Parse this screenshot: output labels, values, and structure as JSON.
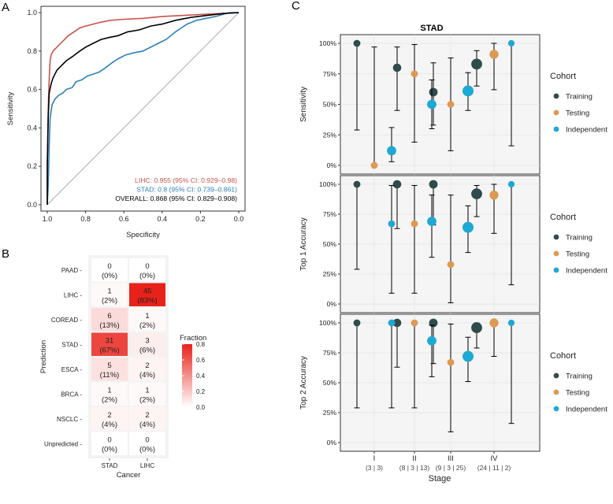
{
  "panel_labels": [
    "A",
    "B",
    "C"
  ],
  "colors": {
    "lihc": "#c9534a",
    "stad": "#2d7fb8",
    "overall": "#000000",
    "training": "#2f4b4b",
    "testing": "#dd9a52",
    "independent": "#1ea8d4",
    "panel_bg": "#f5f5f5",
    "grid": "#e3e3e3",
    "cell_line": "#ffffff",
    "heat_low": "#ffffff",
    "heat_high": "#e8221a"
  },
  "chart_data": [
    {
      "id": "A",
      "type": "line",
      "title": "",
      "xlabel": "Specificity",
      "ylabel": "Sensitivity",
      "xlim": [
        1.0,
        0.0
      ],
      "ylim": [
        0.0,
        1.0
      ],
      "x_ticks": [
        "1.0",
        "0.8",
        "0.6",
        "0.4",
        "0.2",
        "0.0"
      ],
      "y_ticks": [
        "0.0",
        "0.2",
        "0.4",
        "0.6",
        "0.8",
        "1.0"
      ],
      "series": [
        {
          "name": "LIHC",
          "color": "#c9534a",
          "label": "LIHC: 0.955 (95% CI: 0.929–0.98)",
          "points": [
            [
              1.0,
              0.0
            ],
            [
              1.0,
              0.2
            ],
            [
              0.995,
              0.5
            ],
            [
              0.99,
              0.65
            ],
            [
              0.985,
              0.75
            ],
            [
              0.98,
              0.78
            ],
            [
              0.97,
              0.8
            ],
            [
              0.96,
              0.81
            ],
            [
              0.95,
              0.82
            ],
            [
              0.93,
              0.84
            ],
            [
              0.91,
              0.86
            ],
            [
              0.89,
              0.88
            ],
            [
              0.86,
              0.9
            ],
            [
              0.83,
              0.92
            ],
            [
              0.8,
              0.93
            ],
            [
              0.76,
              0.94
            ],
            [
              0.72,
              0.95
            ],
            [
              0.67,
              0.96
            ],
            [
              0.6,
              0.965
            ],
            [
              0.5,
              0.97
            ],
            [
              0.4,
              0.98
            ],
            [
              0.3,
              0.985
            ],
            [
              0.2,
              0.99
            ],
            [
              0.1,
              0.995
            ],
            [
              0.0,
              1.0
            ]
          ]
        },
        {
          "name": "STAD",
          "color": "#2d7fb8",
          "label": "STAD: 0.8 (95% CI: 0.739–0.861)",
          "points": [
            [
              1.0,
              0.0
            ],
            [
              0.995,
              0.1
            ],
            [
              0.99,
              0.3
            ],
            [
              0.985,
              0.45
            ],
            [
              0.975,
              0.52
            ],
            [
              0.96,
              0.55
            ],
            [
              0.94,
              0.57
            ],
            [
              0.92,
              0.58
            ],
            [
              0.9,
              0.6
            ],
            [
              0.87,
              0.61
            ],
            [
              0.85,
              0.64
            ],
            [
              0.82,
              0.65
            ],
            [
              0.79,
              0.67
            ],
            [
              0.76,
              0.68
            ],
            [
              0.73,
              0.69
            ],
            [
              0.7,
              0.71
            ],
            [
              0.66,
              0.74
            ],
            [
              0.63,
              0.76
            ],
            [
              0.59,
              0.78
            ],
            [
              0.55,
              0.79
            ],
            [
              0.5,
              0.8
            ],
            [
              0.46,
              0.82
            ],
            [
              0.42,
              0.84
            ],
            [
              0.38,
              0.86
            ],
            [
              0.33,
              0.9
            ],
            [
              0.3,
              0.92
            ],
            [
              0.27,
              0.94
            ],
            [
              0.22,
              0.96
            ],
            [
              0.17,
              0.97
            ],
            [
              0.12,
              0.98
            ],
            [
              0.05,
              1.0
            ],
            [
              0.0,
              1.0
            ]
          ]
        },
        {
          "name": "OVERALL",
          "color": "#000000",
          "label": "OVERALL: 0.868 (95% CI: 0.829–0.908)",
          "points": [
            [
              1.0,
              0.0
            ],
            [
              1.0,
              0.2
            ],
            [
              0.995,
              0.45
            ],
            [
              0.99,
              0.58
            ],
            [
              0.98,
              0.63
            ],
            [
              0.97,
              0.66
            ],
            [
              0.95,
              0.7
            ],
            [
              0.93,
              0.72
            ],
            [
              0.9,
              0.75
            ],
            [
              0.87,
              0.77
            ],
            [
              0.83,
              0.8
            ],
            [
              0.8,
              0.82
            ],
            [
              0.76,
              0.84
            ],
            [
              0.72,
              0.86
            ],
            [
              0.68,
              0.87
            ],
            [
              0.63,
              0.88
            ],
            [
              0.58,
              0.9
            ],
            [
              0.52,
              0.91
            ],
            [
              0.46,
              0.93
            ],
            [
              0.4,
              0.94
            ],
            [
              0.33,
              0.96
            ],
            [
              0.25,
              0.975
            ],
            [
              0.17,
              0.985
            ],
            [
              0.08,
              0.995
            ],
            [
              0.0,
              1.0
            ]
          ]
        }
      ]
    },
    {
      "id": "B",
      "type": "heatmap",
      "xlabel": "Cancer",
      "ylabel": "Prediction",
      "columns": [
        "STAD",
        "LIHC"
      ],
      "rows": [
        "PAAD",
        "LIHC",
        "COREAD",
        "STAD",
        "ESCA",
        "BRCA",
        "NSCLC",
        "Unpredicted"
      ],
      "counts": [
        [
          0,
          0
        ],
        [
          1,
          45
        ],
        [
          6,
          1
        ],
        [
          31,
          3
        ],
        [
          5,
          2
        ],
        [
          1,
          1
        ],
        [
          2,
          2
        ],
        [
          0,
          0
        ]
      ],
      "percent_labels": [
        [
          "(0%)",
          "(0%)"
        ],
        [
          "(2%)",
          "(83%)"
        ],
        [
          "(13%)",
          "(2%)"
        ],
        [
          "(67%)",
          "(6%)"
        ],
        [
          "(11%)",
          "(4%)"
        ],
        [
          "(2%)",
          "(2%)"
        ],
        [
          "(4%)",
          "(4%)"
        ],
        [
          "(0%)",
          "(0%)"
        ]
      ],
      "fraction": [
        [
          0,
          0
        ],
        [
          0.02,
          0.83
        ],
        [
          0.13,
          0.02
        ],
        [
          0.67,
          0.06
        ],
        [
          0.11,
          0.04
        ],
        [
          0.02,
          0.02
        ],
        [
          0.04,
          0.04
        ],
        [
          0,
          0
        ]
      ],
      "legend": {
        "title": "Fraction",
        "ticks": [
          "0.0",
          "0.2",
          "0.4",
          "0.6",
          "0.8"
        ],
        "range": [
          0,
          0.8
        ]
      }
    },
    {
      "id": "C",
      "type": "scatter",
      "title": "STAD",
      "xlabel": "Stage",
      "categories": [
        "I",
        "II",
        "III",
        "IV"
      ],
      "category_sublabels": [
        "(3 | 3)",
        "(8 | 3 | 13)",
        "(9 | 3 | 25)",
        "(24 | 11 | 2)"
      ],
      "y_ticks": [
        "0%",
        "25%",
        "50%",
        "75%",
        "100%"
      ],
      "ylim": [
        0,
        100
      ],
      "cohorts": [
        "Training",
        "Testing",
        "Independent"
      ],
      "legend_title": "Cohort",
      "facets": [
        {
          "ylabel": "Sensitivity",
          "points": {
            "Training": [
              {
                "value": 100,
                "low": 29,
                "high": 100,
                "size": 3
              },
              {
                "value": 80,
                "low": 45,
                "high": 97,
                "size": 8
              },
              {
                "value": 60,
                "low": 33,
                "high": 84,
                "size": 9
              },
              {
                "value": 83,
                "low": 65,
                "high": 94,
                "size": 24
              }
            ],
            "Testing": [
              {
                "value": 0,
                "low": 0,
                "high": 97,
                "size": 3
              },
              {
                "value": 75,
                "low": 19,
                "high": 99,
                "size": 3
              },
              {
                "value": 50,
                "low": 12,
                "high": 88,
                "size": 3
              },
              {
                "value": 91,
                "low": 62,
                "high": 100,
                "size": 11
              }
            ],
            "Independent": [
              {
                "value": 12,
                "low": 3,
                "high": 31,
                "size": 13
              },
              {
                "value": 50,
                "low": 30,
                "high": 70,
                "size": 13
              },
              {
                "value": 61,
                "low": 45,
                "high": 76,
                "size": 25
              },
              {
                "value": 100,
                "low": 16,
                "high": 100,
                "size": 2
              }
            ]
          }
        },
        {
          "ylabel": "Top 1 Accuracy",
          "points": {
            "Training": [
              {
                "value": 100,
                "low": 29,
                "high": 100,
                "size": 3
              },
              {
                "value": 100,
                "low": 63,
                "high": 100,
                "size": 8
              },
              {
                "value": 100,
                "low": 66,
                "high": 100,
                "size": 9
              },
              {
                "value": 92,
                "low": 73,
                "high": 99,
                "size": 24
              }
            ],
            "Testing": [
              null,
              {
                "value": 67,
                "low": 9,
                "high": 99,
                "size": 3
              },
              {
                "value": 33,
                "low": 1,
                "high": 91,
                "size": 3
              },
              {
                "value": 91,
                "low": 59,
                "high": 100,
                "size": 11
              }
            ],
            "Independent": [
              {
                "value": 67,
                "low": 9,
                "high": 99,
                "size": 3
              },
              {
                "value": 69,
                "low": 39,
                "high": 91,
                "size": 13
              },
              {
                "value": 64,
                "low": 43,
                "high": 82,
                "size": 25
              },
              {
                "value": 100,
                "low": 16,
                "high": 100,
                "size": 2
              }
            ]
          }
        },
        {
          "ylabel": "Top 2 Accuracy",
          "points": {
            "Training": [
              {
                "value": 100,
                "low": 29,
                "high": 100,
                "size": 3
              },
              {
                "value": 100,
                "low": 63,
                "high": 100,
                "size": 8
              },
              {
                "value": 100,
                "low": 66,
                "high": 100,
                "size": 9
              },
              {
                "value": 96,
                "low": 79,
                "high": 100,
                "size": 24
              }
            ],
            "Testing": [
              null,
              {
                "value": 100,
                "low": 29,
                "high": 100,
                "size": 3
              },
              {
                "value": 67,
                "low": 9,
                "high": 99,
                "size": 3
              },
              {
                "value": 100,
                "low": 72,
                "high": 100,
                "size": 11
              }
            ],
            "Independent": [
              {
                "value": 100,
                "low": 29,
                "high": 100,
                "size": 3
              },
              {
                "value": 85,
                "low": 55,
                "high": 98,
                "size": 13
              },
              {
                "value": 72,
                "low": 51,
                "high": 88,
                "size": 25
              },
              {
                "value": 100,
                "low": 16,
                "high": 100,
                "size": 2
              }
            ]
          }
        }
      ]
    }
  ]
}
